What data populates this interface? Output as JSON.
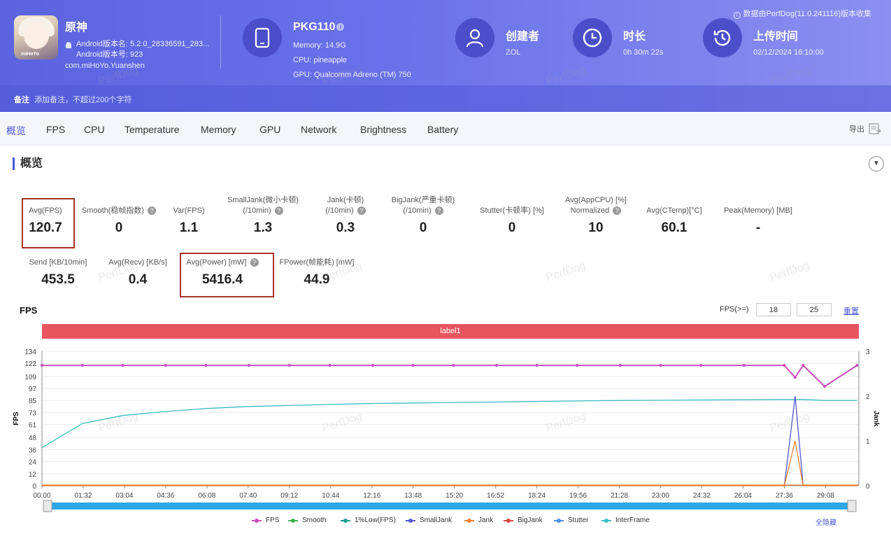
{
  "header": {
    "app": {
      "name": "原神",
      "version_name": "Android版本名: 5.2.0_28336591_283...",
      "version_code": "Android版本号: 923",
      "package": "com.miHoYo.Yuanshen",
      "icon_tag": "miHoYo"
    },
    "device": {
      "name": "PKG110",
      "memory": "Memory: 14.9G",
      "cpu": "CPU: pineapple",
      "gpu": "GPU: Qualcomm Adreno (TM) 750"
    },
    "creator": {
      "title": "创建者",
      "value": "ZOL"
    },
    "duration": {
      "title": "时长",
      "value": "0h 30m 22s"
    },
    "upload": {
      "title": "上传时间",
      "value": "02/12/2024 16:10:00"
    },
    "collected_by": "数据由PerfDog(11.0.241116)版本收集",
    "note_label": "备注",
    "note_placeholder": "添加备注，不超过200个字符"
  },
  "tabs": [
    "概览",
    "FPS",
    "CPU",
    "Temperature",
    "Memory",
    "GPU",
    "Network",
    "Brightness",
    "Battery"
  ],
  "active_tab": "概览",
  "export_label": "导出",
  "section_title": "概览",
  "metrics_row1": [
    {
      "label": "Avg(FPS)",
      "value": "120.7"
    },
    {
      "label": "Smooth(稳帧指数)",
      "value": "0"
    },
    {
      "label": "Var(FPS)",
      "value": "1.1"
    },
    {
      "label": "SmallJank(微小卡顿)",
      "label2": "(/10min)",
      "value": "1.3"
    },
    {
      "label": "Jank(卡顿)",
      "label2": "(/10min)",
      "value": "0.3"
    },
    {
      "label": "BigJank(严重卡顿)",
      "label2": "(/10min)",
      "value": "0"
    },
    {
      "label": "Stutter(卡顿率) [%]",
      "value": "0"
    },
    {
      "label": "Avg(AppCPU) [%]",
      "label2": "Normalized",
      "value": "10"
    },
    {
      "label": "Avg(CTemp)[°C]",
      "value": "60.1"
    },
    {
      "label": "Peak(Memory) [MB]",
      "value": "-"
    }
  ],
  "metrics_row2": [
    {
      "label": "Send [KB/10min]",
      "value": "453.5"
    },
    {
      "label": "Avg(Recv) [KB/s]",
      "value": "0.4"
    },
    {
      "label": "Avg(Power) [mW]",
      "value": "5416.4"
    },
    {
      "label": "FPower(帧能耗) [mW]",
      "value": "44.9"
    }
  ],
  "fps_chart": {
    "title": "FPS",
    "filter_label": "FPS(>=)",
    "filter_low": "18",
    "filter_high": "25",
    "reset_label": "重置",
    "label_bar": "label1",
    "hide_all_label": "全隐藏",
    "watermark": "PerfDog"
  },
  "chart_data": {
    "type": "line",
    "ylabel": "FPS",
    "y2label": "Jank",
    "ylim": [
      0,
      134
    ],
    "y2lim": [
      0,
      3
    ],
    "yticks": [
      "134",
      "122",
      "109",
      "97",
      "85",
      "73",
      "61",
      "48",
      "36",
      "24",
      "12",
      "0"
    ],
    "y2ticks": [
      "3",
      "2",
      "1",
      "0"
    ],
    "xticks": [
      "00:00",
      "01:32",
      "03:04",
      "04:36",
      "06:08",
      "07:40",
      "09:12",
      "10:44",
      "12:16",
      "13:48",
      "15:20",
      "16:52",
      "18:24",
      "19:56",
      "21:28",
      "23:00",
      "24:32",
      "26:04",
      "27:36",
      "29:08"
    ],
    "x_minutes": [
      0,
      1.5,
      3,
      4.6,
      6.1,
      7.7,
      9.2,
      10.7,
      12.3,
      13.8,
      15.3,
      16.9,
      18.4,
      19.9,
      21.5,
      23,
      24.5,
      26.1,
      27.6,
      28,
      28.3,
      29.1,
      30.3
    ],
    "series": [
      {
        "name": "FPS",
        "color": "#c64fbd",
        "values": [
          120,
          120,
          120,
          120,
          120,
          120,
          120,
          120,
          120,
          120,
          120,
          120,
          120,
          120,
          120,
          120,
          120,
          120,
          120,
          108,
          120,
          99,
          120
        ]
      },
      {
        "name": "InterFrame",
        "color": "#3dbcc3",
        "values": [
          38,
          62,
          70,
          74,
          77,
          79,
          80,
          81,
          82,
          82.5,
          83,
          83.5,
          84,
          84.5,
          85,
          85.2,
          85.5,
          85.7,
          86,
          86,
          86,
          85,
          85
        ]
      },
      {
        "name": "SmallJank",
        "color": "#5357cf",
        "values": [
          0,
          0,
          0,
          0,
          0,
          0,
          0,
          0,
          0,
          0,
          0,
          0,
          0,
          0,
          0,
          0,
          0,
          0,
          0,
          2,
          0,
          0,
          0
        ]
      },
      {
        "name": "Jank",
        "color": "#ee8030",
        "values": [
          0,
          0,
          0,
          0,
          0,
          0,
          0,
          0,
          0,
          0,
          0,
          0,
          0,
          0,
          0,
          0,
          0,
          0,
          0,
          1,
          0,
          0,
          0
        ]
      },
      {
        "name": "Smooth",
        "color": "#3fb24b",
        "values": []
      },
      {
        "name": "1%Low(FPS)",
        "color": "#1a9e8a",
        "values": []
      },
      {
        "name": "BigJank",
        "color": "#d8453c",
        "values": []
      },
      {
        "name": "Stutter",
        "color": "#4b8ee6",
        "values": []
      }
    ],
    "legend": [
      "FPS",
      "Smooth",
      "1%Low(FPS)",
      "SmallJank",
      "Jank",
      "BigJank",
      "Stutter",
      "InterFrame"
    ],
    "grid": true
  }
}
